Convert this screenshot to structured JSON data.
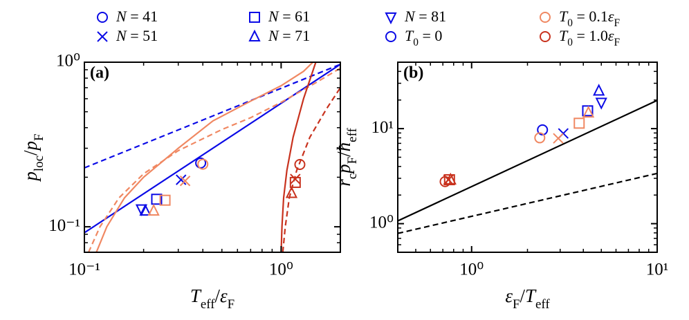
{
  "legend": [
    {
      "marker": "o",
      "color": "#0a0ae6",
      "label": [
        {
          "t": "N",
          "it": true
        },
        {
          "t": " = 41"
        }
      ]
    },
    {
      "marker": "x",
      "color": "#0a0ae6",
      "label": [
        {
          "t": "N",
          "it": true
        },
        {
          "t": " = 51"
        }
      ]
    },
    {
      "marker": "s",
      "color": "#0a0ae6",
      "label": [
        {
          "t": "N",
          "it": true
        },
        {
          "t": " = 61"
        }
      ]
    },
    {
      "marker": "^",
      "color": "#0a0ae6",
      "label": [
        {
          "t": "N",
          "it": true
        },
        {
          "t": " = 71"
        }
      ]
    },
    {
      "marker": "v",
      "color": "#0a0ae6",
      "label": [
        {
          "t": "N",
          "it": true
        },
        {
          "t": " = 81"
        }
      ]
    },
    {
      "marker": "o",
      "color": "#0a0ae6",
      "label": [
        {
          "t": "T",
          "it": true
        },
        {
          "t": "0",
          "sub": true
        },
        {
          "t": " = 0"
        }
      ]
    },
    {
      "marker": "o",
      "color": "#f08862",
      "label": [
        {
          "t": "T",
          "it": true
        },
        {
          "t": "0",
          "sub": true
        },
        {
          "t": " = 0.1"
        },
        {
          "t": "ε",
          "it": true
        },
        {
          "t": "F",
          "sub": true
        }
      ]
    },
    {
      "marker": "o",
      "color": "#c8321e",
      "label": [
        {
          "t": "T",
          "it": true
        },
        {
          "t": "0",
          "sub": true
        },
        {
          "t": " = 1.0"
        },
        {
          "t": "ε",
          "it": true
        },
        {
          "t": "F",
          "sub": true
        }
      ]
    }
  ],
  "chart_data": [
    {
      "type": "scatter",
      "panel_label": "(a)",
      "log_x": true,
      "log_y": true,
      "xlabel": [
        {
          "t": "T",
          "it": true
        },
        {
          "t": "eff",
          "sub": true
        },
        {
          "t": "/"
        },
        {
          "t": "ε",
          "it": true
        },
        {
          "t": "F",
          "sub": true
        }
      ],
      "ylabel": [
        {
          "t": "p",
          "it": true
        },
        {
          "t": "loc",
          "sub": true
        },
        {
          "t": "/"
        },
        {
          "t": "p",
          "it": true
        },
        {
          "t": "F",
          "sub": true
        }
      ],
      "xlim": [
        0.1,
        2
      ],
      "ylim": [
        0.07,
        1
      ],
      "xticks": [
        {
          "value": 0.1,
          "label": "10⁻¹"
        },
        {
          "value": 1,
          "label": "10⁰"
        }
      ],
      "yticks": [
        {
          "value": 0.1,
          "label": "10⁻¹"
        },
        {
          "value": 1,
          "label": "10⁰"
        }
      ],
      "lines": [
        {
          "color": "#0a0ae6",
          "dash": false,
          "x": [
            0.1,
            2
          ],
          "values": [
            0.092,
            0.97
          ]
        },
        {
          "color": "#0a0ae6",
          "dash": true,
          "x": [
            0.1,
            2
          ],
          "values": [
            0.228,
            0.97
          ]
        },
        {
          "color": "#f08862",
          "dash": false,
          "x": [
            0.115,
            0.13,
            0.16,
            0.2,
            0.3,
            0.45,
            0.7,
            1.0,
            1.3,
            1.45
          ],
          "values": [
            0.07,
            0.1,
            0.15,
            0.2,
            0.3,
            0.44,
            0.58,
            0.72,
            0.88,
            1.0
          ]
        },
        {
          "color": "#f08862",
          "dash": true,
          "x": [
            0.105,
            0.12,
            0.15,
            0.2,
            0.3,
            0.5,
            0.7,
            1.0,
            1.5,
            2
          ],
          "values": [
            0.07,
            0.1,
            0.15,
            0.21,
            0.29,
            0.39,
            0.46,
            0.57,
            0.75,
            0.92
          ]
        },
        {
          "color": "#c8321e",
          "dash": false,
          "x": [
            1.0,
            1.01,
            1.03,
            1.07,
            1.15,
            1.3,
            1.5
          ],
          "values": [
            0.07,
            0.1,
            0.15,
            0.22,
            0.35,
            0.6,
            1.0
          ]
        },
        {
          "color": "#c8321e",
          "dash": true,
          "x": [
            1.02,
            1.05,
            1.1,
            1.2,
            1.4,
            1.7,
            2
          ],
          "values": [
            0.07,
            0.1,
            0.15,
            0.22,
            0.35,
            0.52,
            0.7
          ]
        }
      ],
      "points": [
        {
          "color": "#0a0ae6",
          "markers": [
            "o",
            "x",
            "s",
            "^",
            "v"
          ],
          "x": [
            0.39,
            0.31,
            0.233,
            0.204,
            0.195
          ],
          "values": [
            0.244,
            0.193,
            0.147,
            0.125,
            0.128
          ]
        },
        {
          "color": "#f08862",
          "markers": [
            "o",
            "x",
            "s",
            "^"
          ],
          "x": [
            0.4,
            0.325,
            0.257,
            0.225
          ],
          "values": [
            0.24,
            0.19,
            0.145,
            0.125
          ]
        },
        {
          "color": "#c8321e",
          "markers": [
            "o",
            "x",
            "s",
            "^"
          ],
          "x": [
            1.245,
            1.18,
            1.18,
            1.13
          ],
          "values": [
            0.239,
            0.195,
            0.186,
            0.16
          ]
        }
      ]
    },
    {
      "type": "scatter",
      "panel_label": "(b)",
      "log_x": true,
      "log_y": true,
      "xlabel": [
        {
          "t": "ε",
          "it": true
        },
        {
          "t": "F",
          "sub": true
        },
        {
          "t": "/"
        },
        {
          "t": "T",
          "it": true
        },
        {
          "t": "eff",
          "sub": true
        }
      ],
      "ylabel": [
        {
          "t": "r",
          "it": true
        },
        {
          "t": "c",
          "sub": true
        },
        {
          "t": "p",
          "it": true
        },
        {
          "t": "F",
          "sub": true
        },
        {
          "t": "/"
        },
        {
          "t": "ħ",
          "it": true
        },
        {
          "t": "eff",
          "sub": true
        }
      ],
      "xlim": [
        0.4,
        10
      ],
      "ylim": [
        0.5,
        50
      ],
      "xticks": [
        {
          "value": 1,
          "label": "10⁰"
        },
        {
          "value": 10,
          "label": "10¹"
        }
      ],
      "yticks": [
        {
          "value": 1,
          "label": "10⁰"
        },
        {
          "value": 10,
          "label": "10¹"
        }
      ],
      "lines": [
        {
          "color": "#000000",
          "dash": false,
          "x": [
            0.4,
            10
          ],
          "values": [
            1.07,
            19.8
          ]
        },
        {
          "color": "#000000",
          "dash": true,
          "x": [
            0.4,
            10
          ],
          "values": [
            0.79,
            3.38
          ]
        }
      ],
      "points": [
        {
          "color": "#0a0ae6",
          "markers": [
            "o",
            "x",
            "s",
            "^",
            "v"
          ],
          "x": [
            2.41,
            3.12,
            4.22,
            4.85,
            5.0
          ],
          "values": [
            9.7,
            8.9,
            15.4,
            25,
            18.8
          ]
        },
        {
          "color": "#f08862",
          "markers": [
            "o",
            "x",
            "s",
            "^"
          ],
          "x": [
            2.33,
            2.93,
            3.8,
            4.26
          ],
          "values": [
            8.0,
            7.9,
            11.4,
            14.7
          ]
        },
        {
          "color": "#c8321e",
          "markers": [
            "o",
            "x",
            "s",
            "^"
          ],
          "x": [
            0.72,
            0.75,
            0.76,
            0.77
          ],
          "values": [
            2.77,
            2.9,
            2.9,
            2.9
          ]
        }
      ]
    }
  ]
}
